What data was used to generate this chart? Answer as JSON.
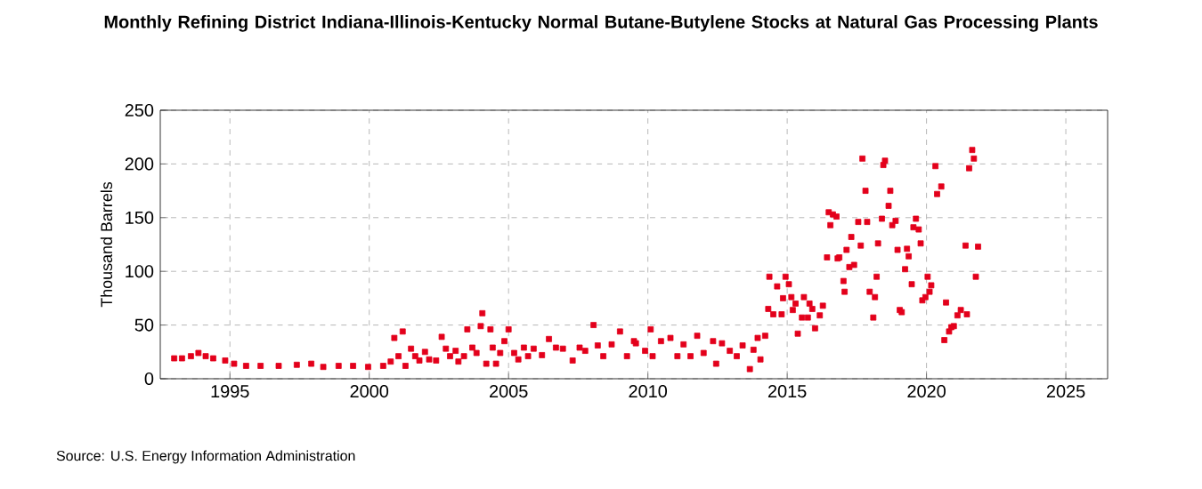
{
  "chart_data": {
    "type": "scatter",
    "title": "Monthly Refining District Indiana-Illinois-Kentucky Normal Butane-Butylene Stocks at Natural Gas Processing Plants",
    "ylabel": "Thousand Barrels",
    "annotations": [
      "Source: U.S. Energy Information Administration"
    ],
    "x": [
      1993.0,
      1993.28,
      1993.6,
      1993.87,
      1994.13,
      1994.4,
      1994.83,
      1995.15,
      1995.58,
      1996.1,
      1996.75,
      1997.4,
      1997.92,
      1998.35,
      1998.9,
      1999.42,
      1999.96,
      2000.5,
      2000.77,
      2000.9,
      2001.05,
      2001.2,
      2001.3,
      2001.5,
      2001.65,
      2001.8,
      2002.0,
      2002.15,
      2002.4,
      2002.6,
      2002.75,
      2002.9,
      2003.1,
      2003.2,
      2003.4,
      2003.52,
      2003.7,
      2003.85,
      2004.0,
      2004.06,
      2004.2,
      2004.35,
      2004.43,
      2004.55,
      2004.7,
      2004.85,
      2005.0,
      2005.2,
      2005.35,
      2005.55,
      2005.7,
      2005.9,
      2006.2,
      2006.45,
      2006.7,
      2006.95,
      2007.3,
      2007.55,
      2007.75,
      2008.05,
      2008.2,
      2008.4,
      2008.7,
      2009.0,
      2009.25,
      2009.5,
      2009.57,
      2009.9,
      2010.1,
      2010.17,
      2010.47,
      2010.81,
      2011.06,
      2011.28,
      2011.53,
      2011.77,
      2012.0,
      2012.34,
      2012.45,
      2012.66,
      2012.94,
      2013.19,
      2013.4,
      2013.66,
      2013.79,
      2013.94,
      2014.04,
      2014.21,
      2014.32,
      2014.36,
      2014.5,
      2014.64,
      2014.8,
      2014.85,
      2014.94,
      2015.06,
      2015.15,
      2015.2,
      2015.3,
      2015.38,
      2015.53,
      2015.6,
      2015.74,
      2015.8,
      2015.9,
      2016.0,
      2016.17,
      2016.28,
      2016.43,
      2016.49,
      2016.55,
      2016.64,
      2016.77,
      2016.81,
      2016.87,
      2017.02,
      2017.06,
      2017.13,
      2017.23,
      2017.3,
      2017.4,
      2017.55,
      2017.64,
      2017.7,
      2017.81,
      2017.87,
      2017.96,
      2018.09,
      2018.15,
      2018.21,
      2018.26,
      2018.4,
      2018.45,
      2018.51,
      2018.64,
      2018.7,
      2018.77,
      2018.89,
      2018.96,
      2019.04,
      2019.11,
      2019.23,
      2019.3,
      2019.36,
      2019.47,
      2019.53,
      2019.62,
      2019.72,
      2019.79,
      2019.85,
      2019.96,
      2020.04,
      2020.11,
      2020.17,
      2020.32,
      2020.38,
      2020.53,
      2020.64,
      2020.7,
      2020.81,
      2020.89,
      2020.98,
      2021.11,
      2021.23,
      2021.4,
      2021.45,
      2021.53,
      2021.64,
      2021.7,
      2021.77,
      2021.85
    ],
    "series": [
      {
        "color": "#e3001b",
        "values": [
          19,
          19,
          21,
          24,
          21,
          19,
          17,
          14,
          12,
          12,
          12,
          13,
          14,
          11,
          12,
          12,
          11,
          12,
          16,
          38,
          21,
          44,
          12,
          28,
          21,
          17,
          25,
          18,
          17,
          39,
          28,
          21,
          26,
          16,
          21,
          46,
          29,
          24,
          49,
          61,
          14,
          46,
          29,
          14,
          24,
          35,
          46,
          24,
          18,
          29,
          21,
          28,
          22,
          37,
          29,
          28,
          17,
          29,
          26,
          50,
          31,
          21,
          32,
          44,
          21,
          35,
          33,
          26,
          46,
          21,
          35,
          38,
          21,
          32,
          21,
          40,
          24,
          35,
          14,
          33,
          26,
          21,
          31,
          9,
          27,
          38,
          18,
          40,
          65,
          95,
          60,
          86,
          60,
          75,
          95,
          88,
          76,
          64,
          70,
          42,
          57,
          76,
          57,
          70,
          65,
          47,
          59,
          68,
          113,
          155,
          143,
          153,
          151,
          112,
          113,
          91,
          81,
          120,
          104,
          132,
          106,
          146,
          124,
          205,
          175,
          146,
          81,
          57,
          76,
          95,
          126,
          149,
          199,
          203,
          161,
          175,
          143,
          147,
          120,
          64,
          62,
          102,
          121,
          114,
          88,
          141,
          149,
          139,
          126,
          73,
          76,
          95,
          81,
          87,
          198,
          172,
          179,
          36,
          71,
          44,
          48,
          49,
          59,
          64,
          124,
          60,
          196,
          213,
          205,
          95,
          123
        ]
      }
    ],
    "marker": "square",
    "grid": true,
    "xlim": [
      1992.5,
      2026.5
    ],
    "ylim": [
      0,
      250
    ],
    "xticks": [
      1995,
      2000,
      2005,
      2010,
      2015,
      2020,
      2025
    ],
    "yticks": [
      0,
      50,
      100,
      150,
      200,
      250
    ]
  }
}
